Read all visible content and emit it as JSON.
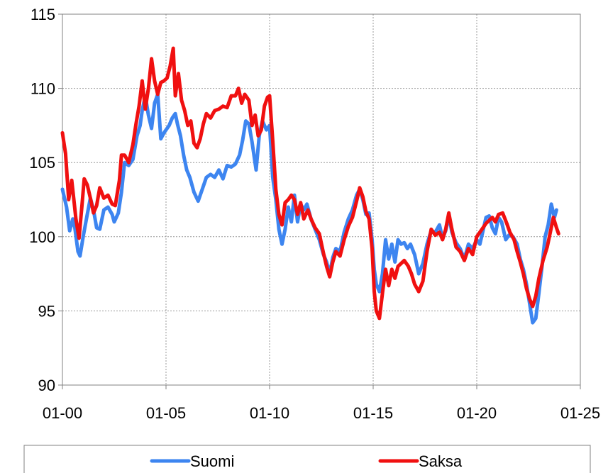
{
  "chart_data": {
    "type": "line",
    "title": "",
    "xlabel": "",
    "ylabel": "",
    "ylim": [
      90,
      115
    ],
    "yticks": [
      "90",
      "95",
      "100",
      "105",
      "110",
      "115"
    ],
    "xlim": [
      2000,
      2025
    ],
    "xticks": [
      {
        "x": 2000,
        "label": "01-00"
      },
      {
        "x": 2005,
        "label": "01-05"
      },
      {
        "x": 2010,
        "label": "01-10"
      },
      {
        "x": 2015,
        "label": "01-15"
      },
      {
        "x": 2020,
        "label": "01-20"
      },
      {
        "x": 2025,
        "label": "01-25"
      }
    ],
    "grid": true,
    "legend_position": "bottom",
    "series": [
      {
        "name": "Suomi",
        "color": "#3d85f0",
        "points": [
          [
            2000.0,
            103.2
          ],
          [
            2000.2,
            102.0
          ],
          [
            2000.35,
            100.4
          ],
          [
            2000.5,
            101.2
          ],
          [
            2000.6,
            100.6
          ],
          [
            2000.75,
            99.0
          ],
          [
            2000.85,
            98.7
          ],
          [
            2001.0,
            100.0
          ],
          [
            2001.2,
            101.5
          ],
          [
            2001.35,
            102.6
          ],
          [
            2001.5,
            101.8
          ],
          [
            2001.65,
            100.6
          ],
          [
            2001.8,
            100.5
          ],
          [
            2002.0,
            101.8
          ],
          [
            2002.2,
            102.0
          ],
          [
            2002.4,
            101.5
          ],
          [
            2002.5,
            101.0
          ],
          [
            2002.7,
            101.6
          ],
          [
            2002.85,
            103.0
          ],
          [
            2003.0,
            105.0
          ],
          [
            2003.2,
            104.8
          ],
          [
            2003.4,
            105.2
          ],
          [
            2003.6,
            106.8
          ],
          [
            2003.75,
            107.5
          ],
          [
            2003.85,
            108.5
          ],
          [
            2004.0,
            109.5
          ],
          [
            2004.15,
            108.2
          ],
          [
            2004.3,
            107.3
          ],
          [
            2004.45,
            109.0
          ],
          [
            2004.6,
            109.6
          ],
          [
            2004.75,
            106.6
          ],
          [
            2004.9,
            107.0
          ],
          [
            2005.0,
            107.2
          ],
          [
            2005.15,
            107.5
          ],
          [
            2005.3,
            108.0
          ],
          [
            2005.45,
            108.3
          ],
          [
            2005.55,
            107.6
          ],
          [
            2005.7,
            106.8
          ],
          [
            2005.85,
            105.5
          ],
          [
            2006.0,
            104.5
          ],
          [
            2006.15,
            104.0
          ],
          [
            2006.35,
            103.0
          ],
          [
            2006.55,
            102.4
          ],
          [
            2006.75,
            103.2
          ],
          [
            2006.95,
            104.0
          ],
          [
            2007.15,
            104.2
          ],
          [
            2007.35,
            104.0
          ],
          [
            2007.55,
            104.5
          ],
          [
            2007.75,
            103.9
          ],
          [
            2007.95,
            104.8
          ],
          [
            2008.15,
            104.7
          ],
          [
            2008.35,
            104.9
          ],
          [
            2008.55,
            105.5
          ],
          [
            2008.7,
            106.5
          ],
          [
            2008.85,
            107.8
          ],
          [
            2009.0,
            107.6
          ],
          [
            2009.15,
            106.4
          ],
          [
            2009.35,
            104.5
          ],
          [
            2009.5,
            106.8
          ],
          [
            2009.65,
            107.8
          ],
          [
            2009.85,
            107.2
          ],
          [
            2010.0,
            107.5
          ],
          [
            2010.15,
            104.0
          ],
          [
            2010.3,
            102.5
          ],
          [
            2010.45,
            100.5
          ],
          [
            2010.6,
            99.5
          ],
          [
            2010.75,
            100.5
          ],
          [
            2010.9,
            102.0
          ],
          [
            2011.05,
            101.0
          ],
          [
            2011.2,
            102.8
          ],
          [
            2011.35,
            101.0
          ],
          [
            2011.5,
            102.2
          ],
          [
            2011.65,
            101.8
          ],
          [
            2011.8,
            102.2
          ],
          [
            2012.0,
            101.2
          ],
          [
            2012.2,
            100.5
          ],
          [
            2012.4,
            99.8
          ],
          [
            2012.6,
            98.8
          ],
          [
            2012.75,
            98.3
          ],
          [
            2012.9,
            97.5
          ],
          [
            2013.05,
            98.6
          ],
          [
            2013.2,
            99.2
          ],
          [
            2013.4,
            99.0
          ],
          [
            2013.6,
            100.3
          ],
          [
            2013.8,
            101.2
          ],
          [
            2014.0,
            101.8
          ],
          [
            2014.2,
            102.8
          ],
          [
            2014.35,
            103.2
          ],
          [
            2014.5,
            102.5
          ],
          [
            2014.65,
            101.5
          ],
          [
            2014.8,
            101.6
          ],
          [
            2014.95,
            99.8
          ],
          [
            2015.05,
            97.8
          ],
          [
            2015.15,
            96.8
          ],
          [
            2015.3,
            96.3
          ],
          [
            2015.45,
            97.5
          ],
          [
            2015.6,
            99.8
          ],
          [
            2015.75,
            98.5
          ],
          [
            2015.9,
            99.5
          ],
          [
            2016.05,
            98.3
          ],
          [
            2016.2,
            99.8
          ],
          [
            2016.35,
            99.5
          ],
          [
            2016.5,
            99.6
          ],
          [
            2016.65,
            99.2
          ],
          [
            2016.8,
            99.5
          ],
          [
            2017.0,
            98.8
          ],
          [
            2017.2,
            97.5
          ],
          [
            2017.4,
            98.2
          ],
          [
            2017.6,
            99.5
          ],
          [
            2017.8,
            100.4
          ],
          [
            2018.0,
            100.3
          ],
          [
            2018.2,
            100.8
          ],
          [
            2018.35,
            99.9
          ],
          [
            2018.5,
            100.4
          ],
          [
            2018.65,
            101.4
          ],
          [
            2018.8,
            100.3
          ],
          [
            2019.0,
            99.6
          ],
          [
            2019.2,
            99.2
          ],
          [
            2019.4,
            98.5
          ],
          [
            2019.6,
            99.5
          ],
          [
            2019.8,
            99.2
          ],
          [
            2020.0,
            99.8
          ],
          [
            2020.15,
            99.5
          ],
          [
            2020.3,
            100.4
          ],
          [
            2020.45,
            101.3
          ],
          [
            2020.6,
            101.4
          ],
          [
            2020.75,
            100.6
          ],
          [
            2020.9,
            100.2
          ],
          [
            2021.05,
            101.3
          ],
          [
            2021.2,
            101.0
          ],
          [
            2021.4,
            99.8
          ],
          [
            2021.55,
            100.1
          ],
          [
            2021.75,
            100.0
          ],
          [
            2021.95,
            99.5
          ],
          [
            2022.1,
            98.5
          ],
          [
            2022.25,
            97.8
          ],
          [
            2022.4,
            96.8
          ],
          [
            2022.55,
            95.5
          ],
          [
            2022.7,
            94.2
          ],
          [
            2022.85,
            94.5
          ],
          [
            2023.0,
            96.2
          ],
          [
            2023.15,
            98.0
          ],
          [
            2023.3,
            100.0
          ],
          [
            2023.45,
            100.8
          ],
          [
            2023.6,
            102.2
          ],
          [
            2023.75,
            101.3
          ],
          [
            2023.85,
            101.8
          ]
        ]
      },
      {
        "name": "Saksa",
        "color": "#f01010",
        "points": [
          [
            2000.0,
            107.0
          ],
          [
            2000.15,
            105.6
          ],
          [
            2000.3,
            102.5
          ],
          [
            2000.45,
            103.8
          ],
          [
            2000.55,
            102.5
          ],
          [
            2000.65,
            101.2
          ],
          [
            2000.8,
            99.9
          ],
          [
            2000.95,
            102.2
          ],
          [
            2001.05,
            103.9
          ],
          [
            2001.2,
            103.5
          ],
          [
            2001.35,
            102.6
          ],
          [
            2001.5,
            101.6
          ],
          [
            2001.65,
            102.1
          ],
          [
            2001.8,
            103.3
          ],
          [
            2002.0,
            102.6
          ],
          [
            2002.2,
            102.8
          ],
          [
            2002.4,
            102.2
          ],
          [
            2002.55,
            102.1
          ],
          [
            2002.75,
            103.8
          ],
          [
            2002.85,
            105.5
          ],
          [
            2003.0,
            105.5
          ],
          [
            2003.2,
            105.0
          ],
          [
            2003.4,
            106.2
          ],
          [
            2003.55,
            107.6
          ],
          [
            2003.7,
            108.8
          ],
          [
            2003.85,
            110.5
          ],
          [
            2004.0,
            108.6
          ],
          [
            2004.15,
            110.0
          ],
          [
            2004.3,
            112.0
          ],
          [
            2004.45,
            110.5
          ],
          [
            2004.6,
            109.6
          ],
          [
            2004.75,
            110.4
          ],
          [
            2004.9,
            110.5
          ],
          [
            2005.05,
            110.7
          ],
          [
            2005.2,
            111.5
          ],
          [
            2005.35,
            112.7
          ],
          [
            2005.45,
            109.5
          ],
          [
            2005.6,
            111.0
          ],
          [
            2005.75,
            109.2
          ],
          [
            2005.9,
            108.5
          ],
          [
            2006.05,
            107.5
          ],
          [
            2006.2,
            107.8
          ],
          [
            2006.35,
            106.3
          ],
          [
            2006.5,
            106.0
          ],
          [
            2006.65,
            106.6
          ],
          [
            2006.8,
            107.6
          ],
          [
            2006.95,
            108.3
          ],
          [
            2007.15,
            108.0
          ],
          [
            2007.35,
            108.5
          ],
          [
            2007.55,
            108.6
          ],
          [
            2007.75,
            108.8
          ],
          [
            2007.95,
            108.7
          ],
          [
            2008.15,
            109.5
          ],
          [
            2008.35,
            109.5
          ],
          [
            2008.5,
            110.0
          ],
          [
            2008.65,
            109.0
          ],
          [
            2008.8,
            109.6
          ],
          [
            2009.0,
            109.2
          ],
          [
            2009.15,
            107.5
          ],
          [
            2009.3,
            108.2
          ],
          [
            2009.45,
            106.8
          ],
          [
            2009.6,
            107.2
          ],
          [
            2009.75,
            108.8
          ],
          [
            2009.9,
            109.4
          ],
          [
            2010.0,
            109.5
          ],
          [
            2010.15,
            106.5
          ],
          [
            2010.3,
            103.2
          ],
          [
            2010.45,
            101.5
          ],
          [
            2010.6,
            100.8
          ],
          [
            2010.75,
            102.3
          ],
          [
            2010.9,
            102.5
          ],
          [
            2011.05,
            102.8
          ],
          [
            2011.2,
            102.5
          ],
          [
            2011.35,
            101.5
          ],
          [
            2011.5,
            102.3
          ],
          [
            2011.65,
            101.2
          ],
          [
            2011.85,
            101.8
          ],
          [
            2012.0,
            101.2
          ],
          [
            2012.2,
            100.6
          ],
          [
            2012.4,
            100.2
          ],
          [
            2012.6,
            98.9
          ],
          [
            2012.75,
            98.0
          ],
          [
            2012.9,
            97.3
          ],
          [
            2013.05,
            98.3
          ],
          [
            2013.2,
            99.0
          ],
          [
            2013.4,
            98.7
          ],
          [
            2013.6,
            99.8
          ],
          [
            2013.8,
            100.7
          ],
          [
            2014.0,
            101.3
          ],
          [
            2014.2,
            102.4
          ],
          [
            2014.35,
            103.3
          ],
          [
            2014.5,
            102.7
          ],
          [
            2014.65,
            101.7
          ],
          [
            2014.8,
            101.2
          ],
          [
            2014.95,
            99.2
          ],
          [
            2015.05,
            96.3
          ],
          [
            2015.15,
            95.0
          ],
          [
            2015.3,
            94.5
          ],
          [
            2015.45,
            96.2
          ],
          [
            2015.6,
            97.8
          ],
          [
            2015.75,
            96.7
          ],
          [
            2015.9,
            97.8
          ],
          [
            2016.05,
            97.2
          ],
          [
            2016.2,
            98.0
          ],
          [
            2016.35,
            98.2
          ],
          [
            2016.5,
            98.4
          ],
          [
            2016.7,
            98.0
          ],
          [
            2016.85,
            97.5
          ],
          [
            2017.0,
            96.8
          ],
          [
            2017.2,
            96.3
          ],
          [
            2017.4,
            97.0
          ],
          [
            2017.6,
            99.0
          ],
          [
            2017.8,
            100.5
          ],
          [
            2018.0,
            100.1
          ],
          [
            2018.2,
            100.3
          ],
          [
            2018.35,
            99.8
          ],
          [
            2018.5,
            100.5
          ],
          [
            2018.65,
            101.6
          ],
          [
            2018.8,
            100.5
          ],
          [
            2019.0,
            99.3
          ],
          [
            2019.2,
            99.0
          ],
          [
            2019.4,
            98.4
          ],
          [
            2019.6,
            99.2
          ],
          [
            2019.8,
            98.8
          ],
          [
            2020.0,
            100.0
          ],
          [
            2020.15,
            100.3
          ],
          [
            2020.3,
            100.6
          ],
          [
            2020.45,
            100.9
          ],
          [
            2020.6,
            101.1
          ],
          [
            2020.75,
            101.3
          ],
          [
            2020.9,
            101.0
          ],
          [
            2021.05,
            101.5
          ],
          [
            2021.25,
            101.6
          ],
          [
            2021.45,
            100.9
          ],
          [
            2021.6,
            100.3
          ],
          [
            2021.8,
            99.8
          ],
          [
            2021.95,
            99.0
          ],
          [
            2022.1,
            98.3
          ],
          [
            2022.25,
            97.5
          ],
          [
            2022.4,
            96.5
          ],
          [
            2022.55,
            95.8
          ],
          [
            2022.7,
            95.3
          ],
          [
            2022.85,
            96.0
          ],
          [
            2023.0,
            97.2
          ],
          [
            2023.2,
            98.4
          ],
          [
            2023.4,
            99.3
          ],
          [
            2023.55,
            100.3
          ],
          [
            2023.7,
            101.3
          ],
          [
            2023.85,
            100.6
          ],
          [
            2023.95,
            100.2
          ]
        ]
      }
    ]
  }
}
